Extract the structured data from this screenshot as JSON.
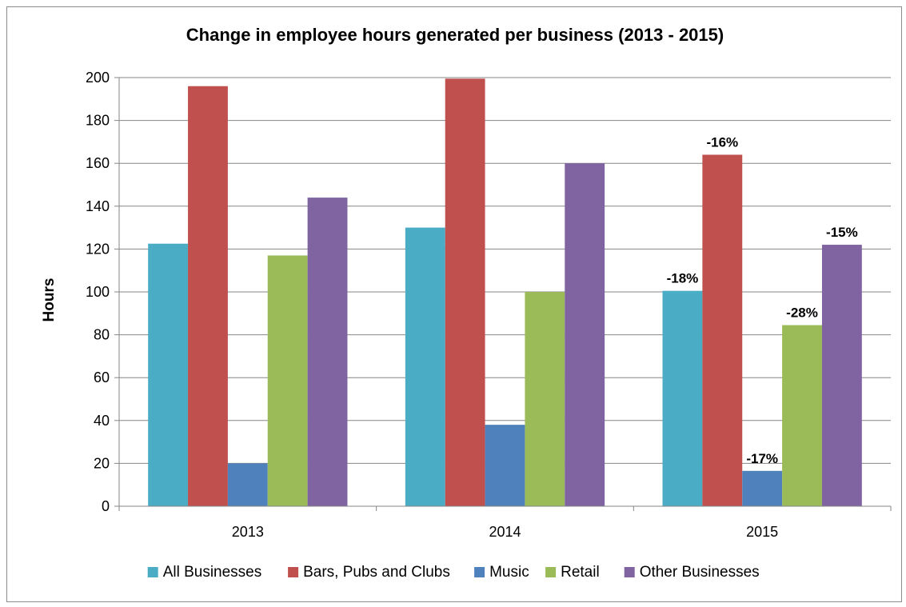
{
  "chart_data": {
    "type": "bar",
    "title": "Change in employee hours generated per business (2013 - 2015)",
    "xlabel": "",
    "ylabel": "Hours",
    "ylim": [
      0,
      200
    ],
    "yticks": [
      0,
      20,
      40,
      60,
      80,
      100,
      120,
      140,
      160,
      180,
      200
    ],
    "grid": true,
    "legend_position": "bottom",
    "categories": [
      "2013",
      "2014",
      "2015"
    ],
    "series": [
      {
        "name": "All Businesses",
        "color": "#4BACC6",
        "values": [
          122.5,
          130,
          100.5
        ],
        "labels": [
          "",
          "",
          "-18%"
        ]
      },
      {
        "name": "Bars, Pubs and Clubs",
        "color": "#C0504D",
        "values": [
          196,
          199.5,
          164
        ],
        "labels": [
          "",
          "",
          "-16%"
        ]
      },
      {
        "name": "Music",
        "color": "#4F81BD",
        "values": [
          20,
          38,
          16.5
        ],
        "labels": [
          "",
          "",
          "-17%"
        ]
      },
      {
        "name": "Retail",
        "color": "#9BBB59",
        "values": [
          117,
          100,
          84.5
        ],
        "labels": [
          "",
          "",
          "-28%"
        ]
      },
      {
        "name": "Other Businesses",
        "color": "#8064A2",
        "values": [
          144,
          160,
          122
        ],
        "labels": [
          "",
          "",
          "-15%"
        ]
      }
    ]
  }
}
